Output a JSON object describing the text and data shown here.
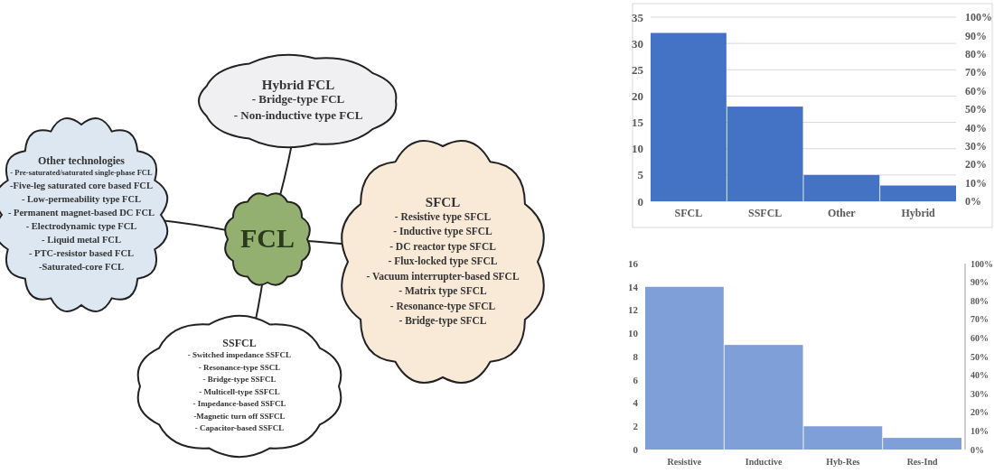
{
  "chart_data": [
    {
      "type": "other",
      "annotations": [
        "FCL",
        "Hybrid FCL\n- Bridge-type FCL\n- Non-inductive type FCL",
        "Other technologies\n- Pre-saturated/saturated single-phase FCL\n-Five-leg saturated core based FCL\n- Low-permeability type FCL\n- Permanent magnet-based DC FCL\n- Electrodynamic type FCL\n- Liquid metal FCL\n- PTC-resistor based FCL\n-Saturated-core FCL",
        "SFCL\n- Resistive type SFCL\n- Inductive type SFCL\n- DC reactor type SFCL\n- Flux-locked type SFCL\n- Vacuum interrupter-based SFCL\n- Matrix type SFCL\n- Resonance-type SFCL\n- Bridge-type SFCL",
        "SSFCL\n- Switched impedance SSFCL\n- Resonance-type SSCL\n- Bridge-type SSFCL\n- Multicell-type SSFCL\n- Impedance-based SSFCL\n-Magnetic turn off SSFCL\n- Capacitor-based SSFCL"
      ]
    },
    {
      "type": "bar",
      "categories": [
        "SFCL",
        "SSFCL",
        "Other",
        "Hybrid"
      ],
      "values": [
        32,
        18,
        5,
        3
      ],
      "color": "#4472c4",
      "ylim": [
        0,
        35
      ],
      "yticks": [
        0,
        5,
        10,
        15,
        20,
        25,
        30,
        35
      ],
      "y2lim": [
        0,
        100
      ],
      "y2ticks": [
        {
          "value": 0,
          "label": "0%"
        },
        {
          "value": 10,
          "label": "10%"
        },
        {
          "value": 20,
          "label": "20%"
        },
        {
          "value": 30,
          "label": "30%"
        },
        {
          "value": 40,
          "label": "40%"
        },
        {
          "value": 50,
          "label": "50%"
        },
        {
          "value": 60,
          "label": "60%"
        },
        {
          "value": 70,
          "label": "70%"
        },
        {
          "value": 80,
          "label": "80%"
        },
        {
          "value": 90,
          "label": "90%"
        },
        {
          "value": 100,
          "label": "100%"
        }
      ],
      "grid": "y"
    },
    {
      "type": "bar",
      "categories": [
        "Resistive",
        "Inductive",
        "Hyb-Res",
        "Res-Ind"
      ],
      "values": [
        14,
        9,
        2,
        1
      ],
      "color": "#7f9fd9",
      "ylim": [
        0,
        16
      ],
      "yticks": [
        0,
        2,
        4,
        6,
        8,
        10,
        12,
        14,
        16
      ],
      "y2lim": [
        0,
        100
      ],
      "y2ticks": [
        {
          "value": 0,
          "label": "0%"
        },
        {
          "value": 10,
          "label": "10%"
        },
        {
          "value": 20,
          "label": "20%"
        },
        {
          "value": 30,
          "label": "30%"
        },
        {
          "value": 40,
          "label": "40%"
        },
        {
          "value": 50,
          "label": "50%"
        },
        {
          "value": 60,
          "label": "60%"
        },
        {
          "value": 70,
          "label": "70%"
        },
        {
          "value": 80,
          "label": "80%"
        },
        {
          "value": 90,
          "label": "90%"
        },
        {
          "value": 100,
          "label": "100%"
        }
      ]
    }
  ]
}
